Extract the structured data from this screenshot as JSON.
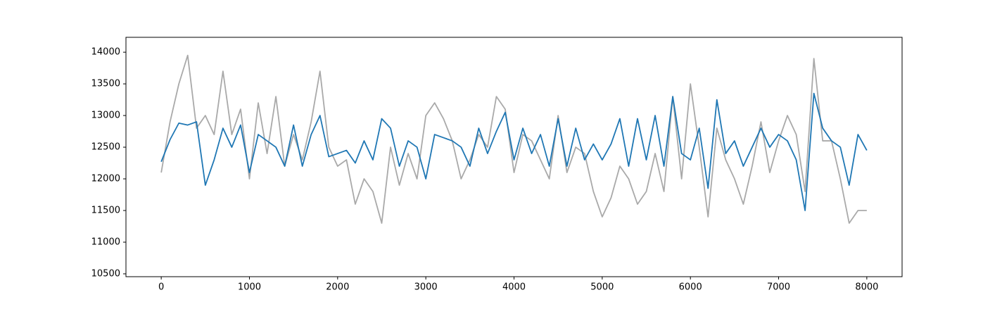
{
  "chart_data": {
    "type": "line",
    "x": [
      0,
      100,
      200,
      300,
      400,
      500,
      600,
      700,
      800,
      900,
      1000,
      1100,
      1200,
      1300,
      1400,
      1500,
      1600,
      1700,
      1800,
      1900,
      2000,
      2100,
      2200,
      2300,
      2400,
      2500,
      2600,
      2700,
      2800,
      2900,
      3000,
      3100,
      3200,
      3300,
      3400,
      3500,
      3600,
      3700,
      3800,
      3900,
      4000,
      4100,
      4200,
      4300,
      4400,
      4500,
      4600,
      4700,
      4800,
      4900,
      5000,
      5100,
      5200,
      5300,
      5400,
      5500,
      5600,
      5700,
      5800,
      5900,
      6000,
      6100,
      6200,
      6300,
      6400,
      6500,
      6600,
      6700,
      6800,
      6900,
      7000,
      7100,
      7200,
      7300,
      7400,
      7500,
      7600,
      7700,
      7800,
      7900,
      8000
    ],
    "series": [
      {
        "color": "#a9a9a9",
        "values": [
          12100,
          12900,
          13500,
          13950,
          12800,
          13000,
          12700,
          13700,
          12700,
          13100,
          12000,
          13200,
          12400,
          13300,
          12200,
          12700,
          12300,
          12900,
          13700,
          12500,
          12200,
          12300,
          11600,
          12000,
          11800,
          11300,
          12500,
          11900,
          12400,
          12000,
          13000,
          13200,
          12950,
          12600,
          12000,
          12300,
          12700,
          12500,
          13300,
          13100,
          12100,
          12700,
          12600,
          12300,
          12000,
          13000,
          12100,
          12500,
          12400,
          11800,
          11400,
          11700,
          12200,
          12000,
          11600,
          11800,
          12400,
          11800,
          13300,
          12000,
          13500,
          12500,
          11400,
          12800,
          12300,
          12000,
          11600,
          12200,
          12900,
          12100,
          12600,
          13000,
          12700,
          11800,
          13900,
          12600,
          12600,
          12000,
          11300,
          11500,
          11500
        ]
      },
      {
        "color": "#1f77b4",
        "values": [
          12270,
          12620,
          12880,
          12850,
          12900,
          11900,
          12300,
          12800,
          12500,
          12850,
          12100,
          12700,
          12600,
          12500,
          12200,
          12850,
          12200,
          12700,
          13000,
          12350,
          12400,
          12450,
          12250,
          12600,
          12300,
          12950,
          12800,
          12200,
          12600,
          12500,
          12000,
          12700,
          12650,
          12600,
          12500,
          12200,
          12800,
          12400,
          12750,
          13050,
          12300,
          12800,
          12400,
          12700,
          12200,
          12950,
          12200,
          12800,
          12300,
          12550,
          12300,
          12550,
          12950,
          12200,
          12950,
          12300,
          13000,
          12200,
          13300,
          12400,
          12300,
          12800,
          11850,
          13250,
          12400,
          12600,
          12200,
          12500,
          12800,
          12500,
          12700,
          12600,
          12300,
          11500,
          13350,
          12800,
          12600,
          12500,
          11900,
          12700,
          12450
        ]
      }
    ],
    "xlim": [
      -400,
      8400
    ],
    "xticks": [
      0,
      1000,
      2000,
      3000,
      4000,
      5000,
      6000,
      7000,
      8000
    ],
    "ylim": [
      10455,
      14235
    ],
    "yticks": [
      10500,
      11000,
      11500,
      12000,
      12500,
      13000,
      13500,
      14000
    ]
  }
}
